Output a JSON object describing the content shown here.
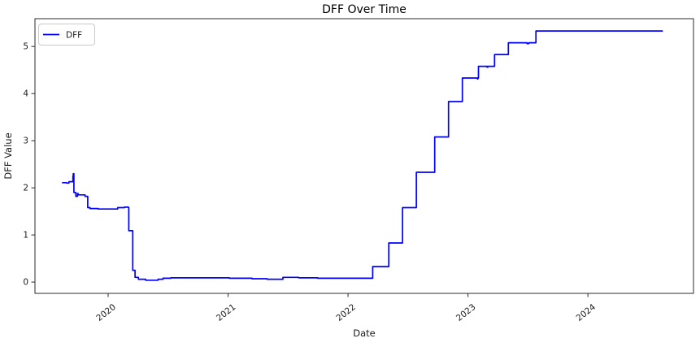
{
  "chart_data": {
    "type": "line",
    "title": "DFF Over Time",
    "xlabel": "Date",
    "ylabel": "DFF Value",
    "grid": false,
    "legend_position": "upper-left",
    "line_color": "#0000ff",
    "xticks": [
      2020,
      2021,
      2022,
      2023,
      2024
    ],
    "yticks": [
      0,
      1,
      2,
      3,
      4,
      5
    ],
    "xlim_years": [
      2019.39,
      2024.88
    ],
    "ylim": [
      -0.24,
      5.59
    ],
    "series": [
      {
        "name": "DFF",
        "color": "#0000ff",
        "points": [
          [
            "2019-08-14",
            2.11
          ],
          [
            "2019-08-28",
            2.1
          ],
          [
            "2019-09-04",
            2.13
          ],
          [
            "2019-09-16",
            2.25
          ],
          [
            "2019-09-17",
            2.3
          ],
          [
            "2019-09-19",
            1.9
          ],
          [
            "2019-09-25",
            1.82
          ],
          [
            "2019-09-30",
            1.88
          ],
          [
            "2019-10-02",
            1.85
          ],
          [
            "2019-10-23",
            1.82
          ],
          [
            "2019-10-31",
            1.58
          ],
          [
            "2019-11-07",
            1.56
          ],
          [
            "2019-12-02",
            1.55
          ],
          [
            "2020-01-30",
            1.58
          ],
          [
            "2020-02-20",
            1.59
          ],
          [
            "2020-03-03",
            1.58
          ],
          [
            "2020-03-04",
            1.09
          ],
          [
            "2020-03-16",
            0.25
          ],
          [
            "2020-03-23",
            0.1
          ],
          [
            "2020-04-02",
            0.06
          ],
          [
            "2020-04-24",
            0.04
          ],
          [
            "2020-06-01",
            0.06
          ],
          [
            "2020-06-16",
            0.08
          ],
          [
            "2020-07-10",
            0.09
          ],
          [
            "2020-09-01",
            0.09
          ],
          [
            "2021-01-05",
            0.08
          ],
          [
            "2021-03-15",
            0.07
          ],
          [
            "2021-04-30",
            0.06
          ],
          [
            "2021-06-17",
            0.1
          ],
          [
            "2021-07-30",
            0.1
          ],
          [
            "2021-08-04",
            0.09
          ],
          [
            "2021-10-01",
            0.08
          ],
          [
            "2022-03-16",
            0.08
          ],
          [
            "2022-03-17",
            0.33
          ],
          [
            "2022-05-04",
            0.33
          ],
          [
            "2022-05-05",
            0.83
          ],
          [
            "2022-06-15",
            0.83
          ],
          [
            "2022-06-16",
            1.58
          ],
          [
            "2022-07-27",
            1.58
          ],
          [
            "2022-07-28",
            2.33
          ],
          [
            "2022-09-21",
            2.33
          ],
          [
            "2022-09-22",
            3.08
          ],
          [
            "2022-11-02",
            3.08
          ],
          [
            "2022-11-03",
            3.83
          ],
          [
            "2022-12-14",
            3.83
          ],
          [
            "2022-12-15",
            4.33
          ],
          [
            "2023-01-30",
            4.31
          ],
          [
            "2023-01-31",
            4.33
          ],
          [
            "2023-02-01",
            4.33
          ],
          [
            "2023-02-02",
            4.58
          ],
          [
            "2023-02-28",
            4.56
          ],
          [
            "2023-03-02",
            4.58
          ],
          [
            "2023-03-22",
            4.58
          ],
          [
            "2023-03-23",
            4.83
          ],
          [
            "2023-05-03",
            4.83
          ],
          [
            "2023-05-04",
            5.08
          ],
          [
            "2023-06-30",
            5.06
          ],
          [
            "2023-07-05",
            5.08
          ],
          [
            "2023-07-26",
            5.08
          ],
          [
            "2023-07-27",
            5.33
          ],
          [
            "2024-08-16",
            5.33
          ]
        ]
      }
    ]
  }
}
